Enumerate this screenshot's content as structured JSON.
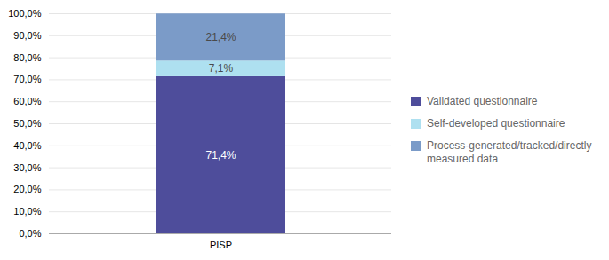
{
  "chart_data": {
    "type": "bar",
    "stacked": true,
    "categories": [
      "PISP"
    ],
    "series": [
      {
        "name": "Validated questionnaire",
        "color": "#4E4D9B",
        "values": [
          71.4
        ],
        "value_labels": [
          "71,4%"
        ]
      },
      {
        "name": "Self-developed questionnaire",
        "color": "#AEE0F0",
        "values": [
          7.1
        ],
        "value_labels": [
          "7,1%"
        ]
      },
      {
        "name": "Process-generated/tracked/directly\nmeasured data",
        "color": "#7B9BC8",
        "values": [
          21.4
        ],
        "value_labels": [
          "21,4%"
        ]
      }
    ],
    "ylim": [
      0,
      100
    ],
    "yticks": [
      {
        "value": 0,
        "label": "0,0%"
      },
      {
        "value": 10,
        "label": "10,0%"
      },
      {
        "value": 20,
        "label": "20,0%"
      },
      {
        "value": 30,
        "label": "30,0%"
      },
      {
        "value": 40,
        "label": "40,0%"
      },
      {
        "value": 50,
        "label": "50,0%"
      },
      {
        "value": 60,
        "label": "60,0%"
      },
      {
        "value": 70,
        "label": "70,0%"
      },
      {
        "value": 80,
        "label": "80,0%"
      },
      {
        "value": 90,
        "label": "90,0%"
      },
      {
        "value": 100,
        "label": "100,0%"
      }
    ],
    "grid": true,
    "legend": "right",
    "data_labels": true
  }
}
